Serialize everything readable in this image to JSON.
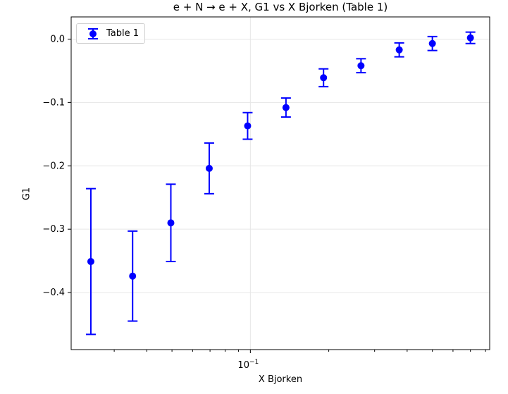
{
  "chart_data": {
    "type": "scatter",
    "title": "e + N → e + X, G1 vs X Bjorken (Table 1)",
    "xlabel": "X Bjorken",
    "ylabel": "G1",
    "xscale": "log",
    "xlim": [
      0.0205,
      0.83
    ],
    "ylim": [
      -0.49,
      0.035
    ],
    "grid": true,
    "legend": "upper left",
    "y_ticks": [
      "0.0",
      "−0.1",
      "−0.2",
      "−0.3",
      "−0.4"
    ],
    "y_tick_values": [
      0.0,
      -0.1,
      -0.2,
      -0.3,
      -0.4
    ],
    "x_tick_values": [
      0.1
    ],
    "x_tick_base": "10",
    "x_tick_exponent": "−1",
    "series": [
      {
        "name": "Table 1",
        "color": "#0000ff",
        "x": [
          0.0244,
          0.0353,
          0.0495,
          0.0695,
          0.0976,
          0.137,
          0.191,
          0.266,
          0.373,
          0.5,
          0.7
        ],
        "y": [
          -0.351,
          -0.374,
          -0.29,
          -0.204,
          -0.137,
          -0.108,
          -0.061,
          -0.042,
          -0.017,
          -0.007,
          0.002
        ],
        "yerr": [
          0.115,
          0.071,
          0.061,
          0.04,
          0.021,
          0.015,
          0.014,
          0.011,
          0.011,
          0.011,
          0.009
        ]
      }
    ]
  }
}
